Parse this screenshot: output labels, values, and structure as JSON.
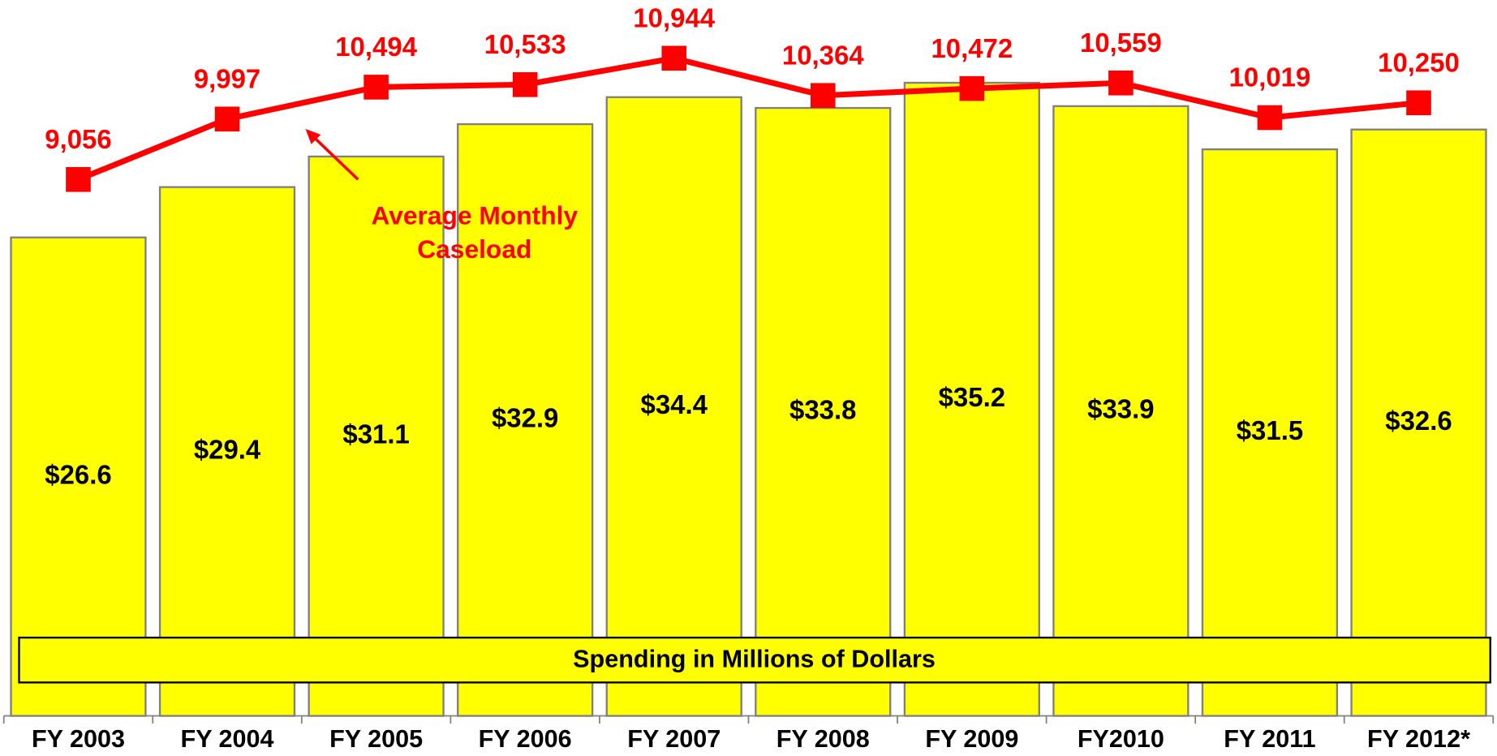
{
  "chart_data": {
    "type": "bar",
    "categories": [
      "FY 2003",
      "FY 2004",
      "FY 2005",
      "FY 2006",
      "FY 2007",
      "FY 2008",
      "FY 2009",
      "FY2010",
      "FY 2011",
      "FY 2012*"
    ],
    "series": [
      {
        "name": "Spending in Millions of Dollars",
        "color": "#ffff00",
        "values": [
          26.6,
          29.4,
          31.1,
          32.9,
          34.4,
          33.8,
          35.2,
          33.9,
          31.5,
          32.6
        ],
        "value_labels": [
          "$26.6",
          "$29.4",
          "$31.1",
          "$32.9",
          "$34.4",
          "$33.8",
          "$35.2",
          "$33.9",
          "$31.5",
          "$32.6"
        ]
      },
      {
        "type": "line",
        "axis": "y2",
        "color": "#ff0000",
        "values": [
          9056,
          9997,
          10494,
          10533,
          10944,
          10364,
          10472,
          10559,
          10019,
          10250
        ],
        "value_labels": [
          "9,056",
          "9,997",
          "10,494",
          "10,533",
          "10,944",
          "10,364",
          "10,472",
          "10,559",
          "10,019",
          "10,250"
        ]
      }
    ],
    "annotation": [
      "Average Monthly",
      "Caseload"
    ],
    "ylim": [
      0,
      39.8
    ],
    "y2lim": [
      705,
      11850
    ]
  }
}
